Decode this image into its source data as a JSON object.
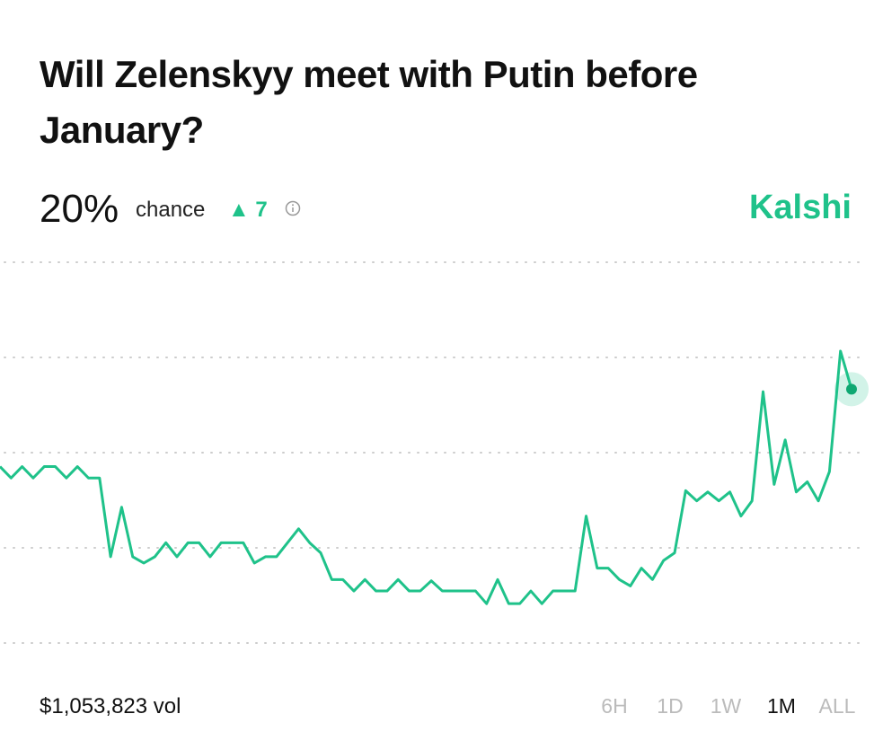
{
  "header": {
    "title": "Will Zelenskyy meet with Putin before January?",
    "chance": "20%",
    "chance_label": "chance",
    "change": 7,
    "brand": "Kalshi"
  },
  "chart_data": {
    "type": "line",
    "color": "#1fc28a",
    "ylim": [
      0,
      30
    ],
    "yticks": [
      0,
      7.5,
      15,
      22.5,
      30
    ],
    "grid": true,
    "values": [
      13.9,
      13,
      13.9,
      13,
      13.9,
      13.9,
      13,
      13.9,
      13,
      13,
      6.8,
      10.7,
      6.8,
      6.3,
      6.8,
      7.9,
      6.8,
      7.9,
      7.9,
      6.8,
      7.9,
      7.9,
      7.9,
      6.3,
      6.8,
      6.8,
      7.9,
      9,
      7.9,
      7.1,
      5,
      5,
      4.1,
      5,
      4.1,
      4.1,
      5,
      4.1,
      4.1,
      4.9,
      4.1,
      4.1,
      4.1,
      4.1,
      3.1,
      5,
      3.1,
      3.1,
      4.1,
      3.1,
      4.1,
      4.1,
      4.1,
      10,
      5.9,
      5.9,
      5,
      4.5,
      5.9,
      5,
      6.5,
      7.1,
      12,
      11.2,
      11.9,
      11.2,
      11.9,
      10,
      11.2,
      19.8,
      12.5,
      16,
      11.9,
      12.7,
      11.2,
      13.5,
      23,
      20
    ]
  },
  "footer": {
    "volume": "$1,053,823 vol",
    "ranges": [
      "6H",
      "1D",
      "1W",
      "1M",
      "ALL"
    ],
    "active_range": "1M"
  }
}
